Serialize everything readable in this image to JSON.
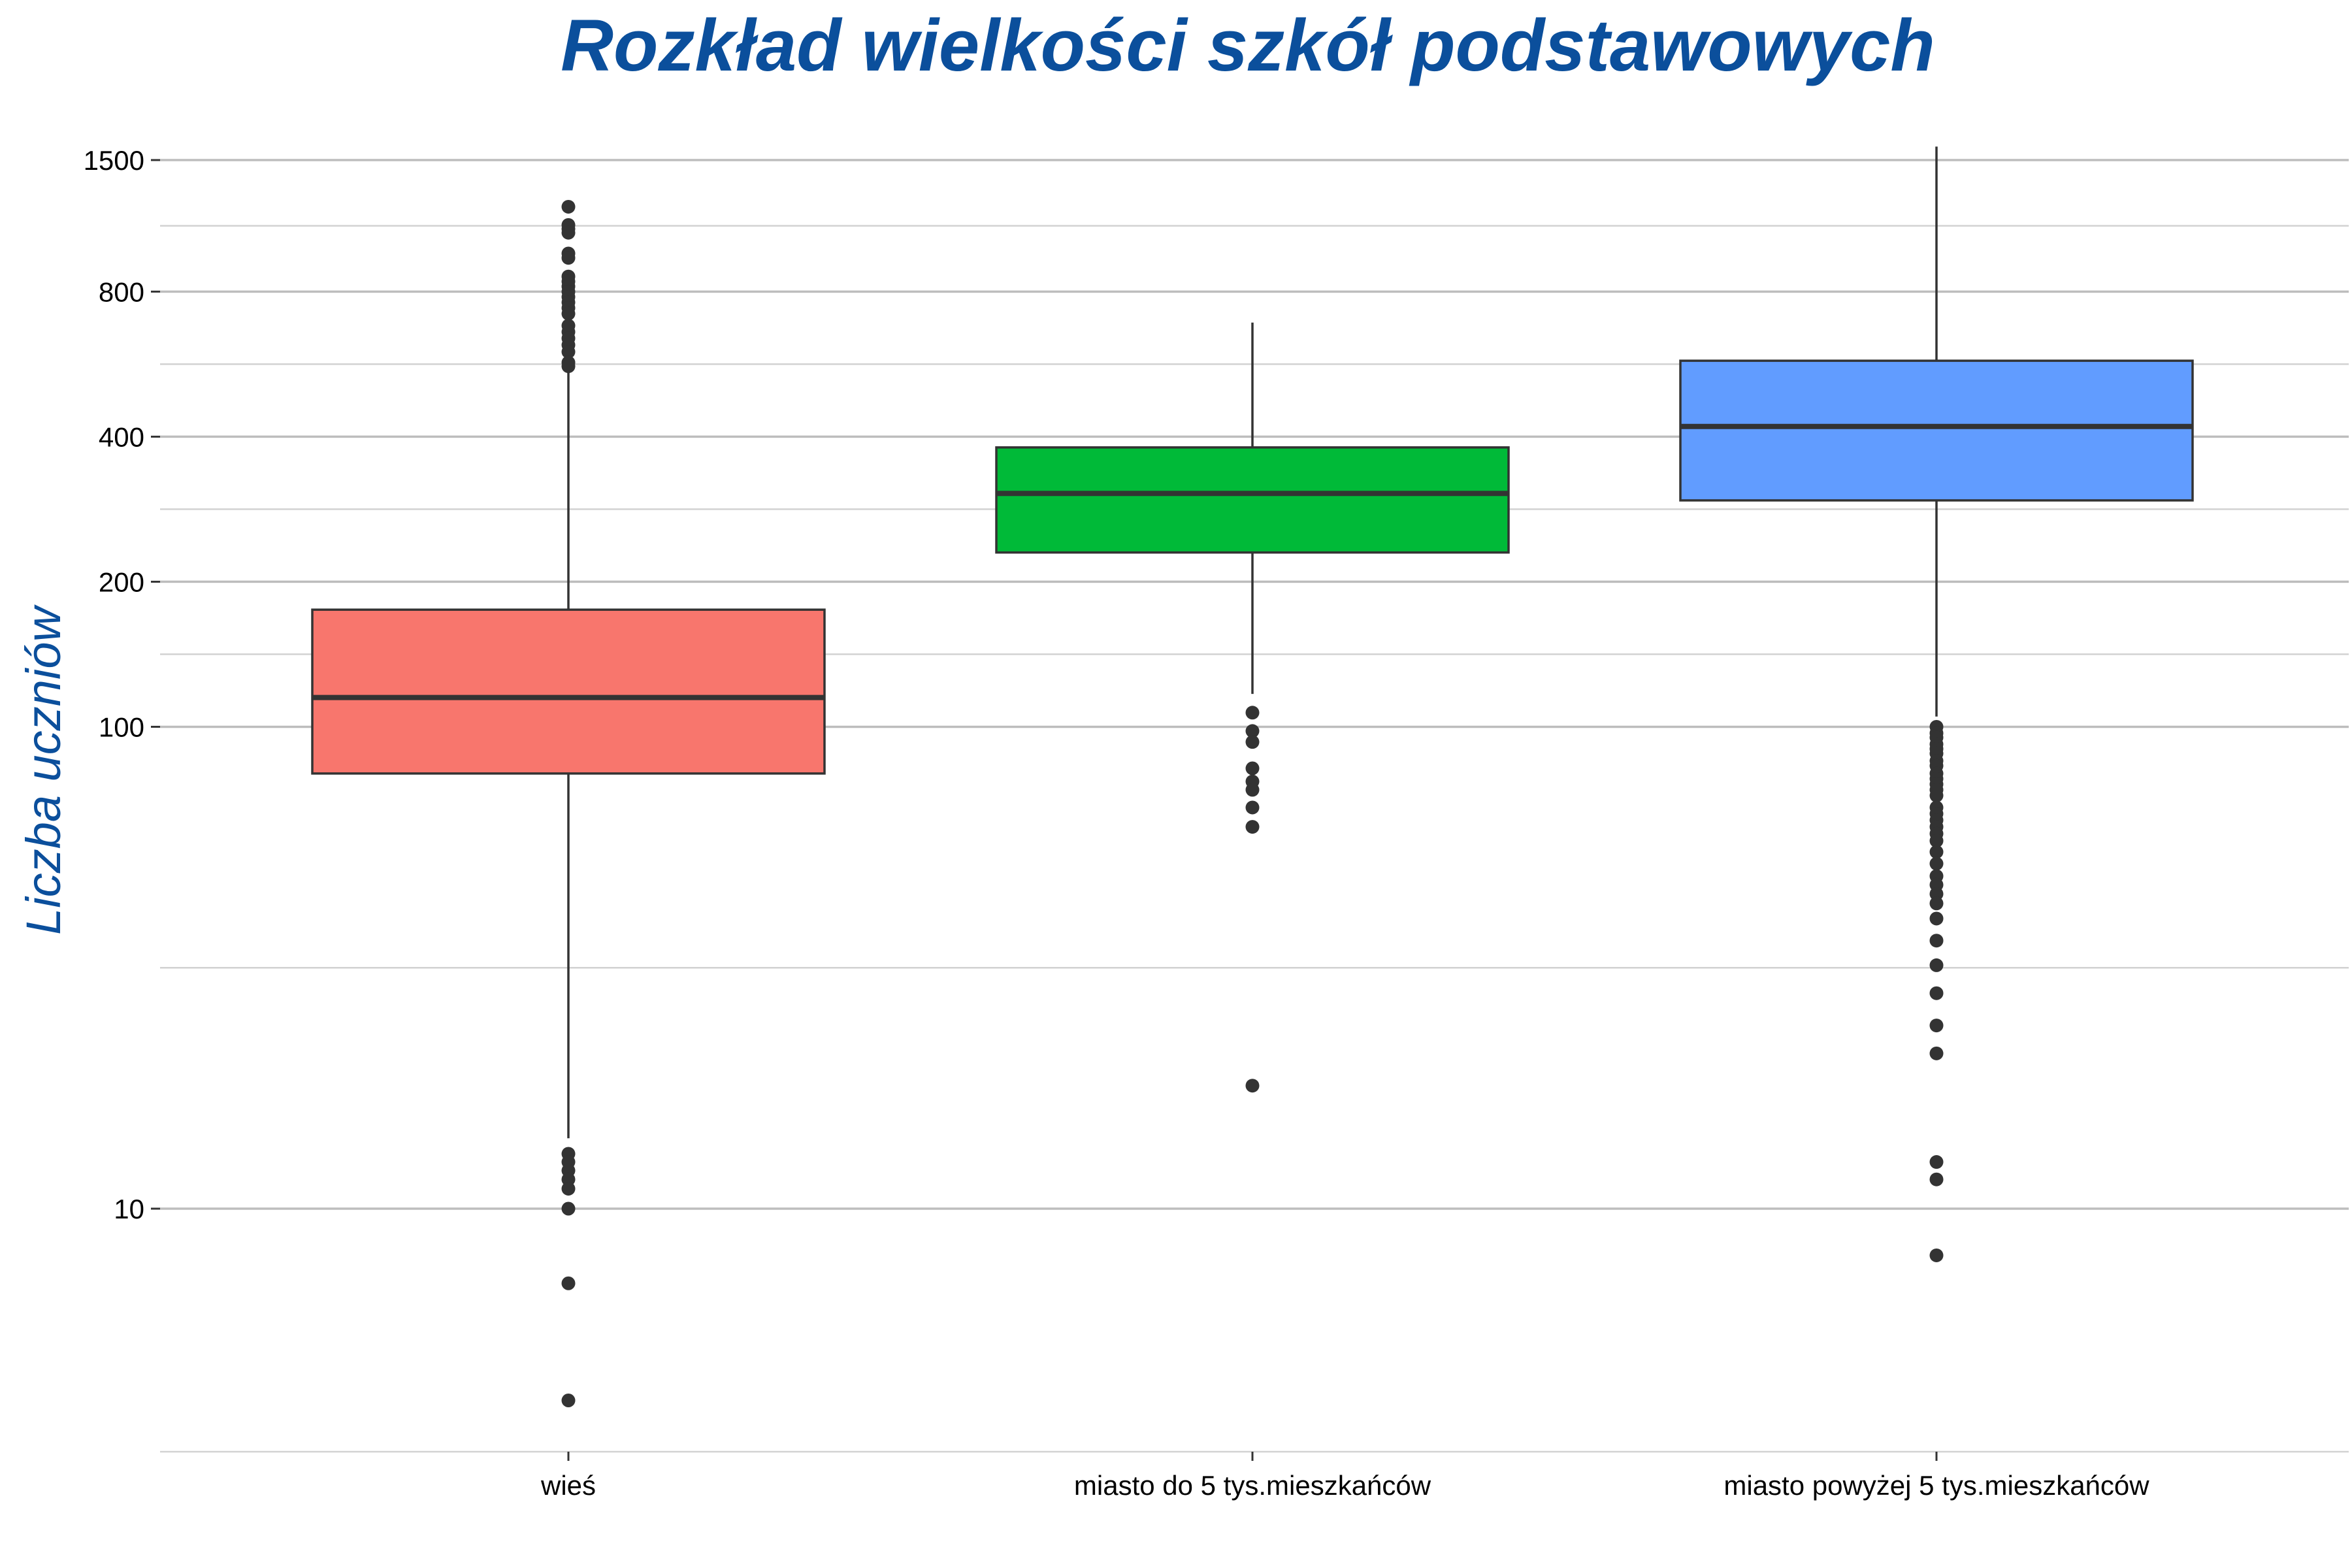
{
  "chart_data": {
    "type": "boxplot",
    "title": "Rozkład wielkości szkół podstawowych",
    "xlabel": "",
    "ylabel": "Liczba uczniów",
    "yscale": "log",
    "ylim": [
      2.5,
      1550
    ],
    "yticks": [
      10,
      100,
      200,
      400,
      800,
      1500
    ],
    "grid": true,
    "categories": [
      "wieś",
      "miasto do 5 tys.mieszkańców",
      "miasto powyżej 5 tys.mieszkańców"
    ],
    "boxes": [
      {
        "category": "wieś",
        "color": "#F8766D",
        "q1": 80,
        "median": 115,
        "q3": 175,
        "whisker_low": 14,
        "whisker_high": 550,
        "outliers": [
          1200,
          1100,
          1080,
          1060,
          960,
          940,
          860,
          840,
          820,
          800,
          780,
          760,
          740,
          720,
          680,
          660,
          640,
          620,
          600,
          570,
          560,
          13,
          12.5,
          12,
          11.5,
          11,
          10,
          7,
          4
        ]
      },
      {
        "category": "miasto do 5 tys.mieszkańców",
        "color": "#00BA38",
        "q1": 230,
        "median": 305,
        "q3": 380,
        "whisker_low": 117,
        "whisker_high": 690,
        "outliers": [
          107,
          98,
          93,
          82,
          77,
          74,
          68,
          62,
          18
        ]
      },
      {
        "category": "miasto powyżej 5 tys.mieszkańców",
        "color": "#619CFF",
        "q1": 295,
        "median": 420,
        "q3": 575,
        "whisker_low": 105,
        "whisker_high": 1600,
        "outliers": [
          100,
          97,
          95,
          92,
          90,
          88,
          85,
          83,
          80,
          78,
          76,
          74,
          72,
          68,
          66,
          64,
          62,
          60,
          58,
          55,
          52,
          49,
          47,
          45,
          43,
          40,
          36,
          32,
          28,
          24,
          21,
          12.5,
          11.5,
          8
        ]
      }
    ]
  }
}
